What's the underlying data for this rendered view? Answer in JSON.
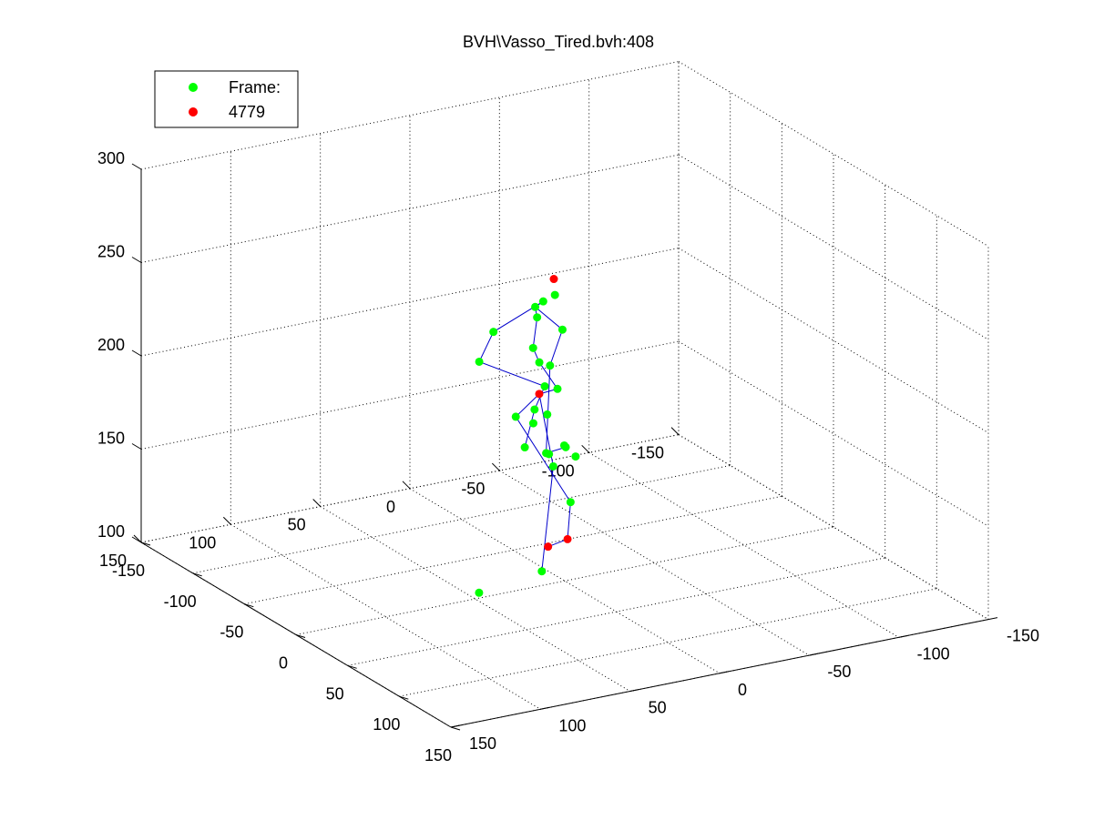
{
  "chart_data": {
    "type": "scatter",
    "title": "BVH\\Vasso_Tired.bvh:408",
    "legend": {
      "placement": "top-left",
      "entries": [
        {
          "label": "Frame:",
          "color": "#00ff00"
        },
        {
          "label": "4779",
          "color": "#ff0000"
        }
      ]
    },
    "axes": {
      "x": {
        "lim": [
          -150,
          150
        ],
        "ticks": [
          -150,
          -100,
          -50,
          0,
          50,
          100,
          150
        ],
        "tick_labels": [
          "-150",
          "-100",
          "-50",
          "0",
          "50",
          "100",
          "150"
        ]
      },
      "y": {
        "lim": [
          -150,
          150
        ],
        "ticks": [
          -150,
          -100,
          -50,
          0,
          50,
          100,
          150
        ],
        "tick_labels": [
          "-150",
          "-100",
          "-50",
          "0",
          "50",
          "100",
          "150"
        ]
      },
      "z": {
        "lim": [
          100,
          300
        ],
        "ticks": [
          100,
          150,
          200,
          250,
          300
        ],
        "tick_labels": [
          "100",
          "150",
          "200",
          "250",
          "300"
        ]
      },
      "grid": true,
      "projection": "3d"
    },
    "colors": {
      "joint": "#00ff00",
      "end_site": "#ff0000",
      "bone": "#0000cc",
      "grid": "#000000"
    },
    "series": [
      {
        "name": "Frame:",
        "color": "#00ff00",
        "points": [
          [
            -19.6,
            -5.8,
            245.7
          ],
          [
            -16.2,
            2.7,
            245.0
          ],
          [
            -12.5,
            9.3,
            244.5
          ],
          [
            -27.8,
            23.8,
            228.9
          ],
          [
            -25.9,
            0.5,
            232.8
          ],
          [
            -0.5,
            1.0,
            234.7
          ],
          [
            -46.4,
            21.0,
            206.2
          ],
          [
            -25.3,
            3.1,
            217.1
          ],
          [
            -8.9,
            3.1,
            213.1
          ],
          [
            -27.6,
            -1.7,
            207.7
          ],
          [
            -36.4,
            -9.8,
            190.4
          ],
          [
            -21.8,
            -8.5,
            194.1
          ],
          [
            -12.4,
            20.2,
            187.8
          ],
          [
            17.0,
            20.2,
            178.0
          ],
          [
            -27.0,
            1.3,
            183.2
          ],
          [
            -15.4,
            0.9,
            184.3
          ],
          [
            8.5,
            13.7,
            173.4
          ],
          [
            -25.8,
            2.7,
            176.5
          ],
          [
            15.7,
            8.5,
            178.5
          ],
          [
            19.8,
            11.7,
            181.4
          ],
          [
            19.7,
            5.3,
            174.2
          ],
          [
            -17.2,
            12.4,
            168.3
          ],
          [
            -25.2,
            -8.1,
            151.5
          ],
          [
            23.3,
            10.2,
            151.9
          ],
          [
            -8.0,
            8.2,
            104.1
          ],
          [
            -12.2,
            40.8,
            97.5
          ]
        ]
      },
      {
        "name": "4779",
        "color": "#ff0000",
        "points": [
          [
            -17.0,
            -3.7,
            255.5
          ],
          [
            -22.8,
            1.1,
            192.9
          ],
          [
            -13.1,
            -9.1,
            116.3
          ],
          [
            -3.5,
            7.3,
            118.6
          ]
        ]
      }
    ],
    "bones": [
      [
        [
          -16.2,
          2.7,
          245.0
        ],
        [
          -12.5,
          9.3,
          244.5
        ],
        [
          -25.9,
          0.5,
          232.8
        ],
        [
          -25.3,
          3.1,
          217.1
        ],
        [
          -27.6,
          -1.7,
          207.7
        ],
        [
          -21.8,
          -8.5,
          194.1
        ],
        [
          -22.8,
          1.1,
          192.9
        ]
      ],
      [
        [
          -16.2,
          2.7,
          245.0
        ],
        [
          -27.8,
          23.8,
          228.9
        ],
        [
          -46.4,
          21.0,
          206.2
        ],
        [
          -36.4,
          -9.8,
          190.4
        ],
        [
          -27.0,
          1.3,
          183.2
        ],
        [
          -17.2,
          12.4,
          168.3
        ]
      ],
      [
        [
          -12.5,
          9.3,
          244.5
        ],
        [
          -0.5,
          1.0,
          234.7
        ],
        [
          -8.9,
          3.1,
          213.1
        ],
        [
          17.0,
          20.2,
          178.0
        ],
        [
          15.7,
          8.5,
          178.5
        ]
      ],
      [
        [
          -22.8,
          1.1,
          192.9
        ],
        [
          -12.4,
          20.2,
          187.8
        ],
        [
          23.3,
          10.2,
          151.9
        ],
        [
          -13.1,
          -9.1,
          116.3
        ],
        [
          -3.5,
          7.3,
          118.6
        ]
      ],
      [
        [
          -22.8,
          1.1,
          192.9
        ],
        [
          -25.2,
          -8.1,
          151.5
        ],
        [
          -8.0,
          8.2,
          104.1
        ]
      ]
    ]
  }
}
